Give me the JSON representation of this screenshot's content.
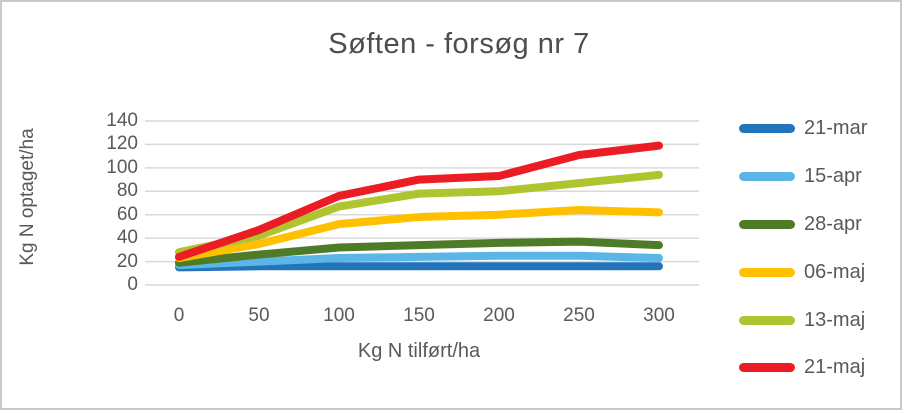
{
  "chart_data": {
    "type": "line",
    "title": "Søften - forsøg nr 7",
    "xlabel": "Kg N tilført/ha",
    "ylabel": "Kg N optaget/ha",
    "categories": [
      0,
      50,
      100,
      150,
      200,
      250,
      300
    ],
    "y_ticks": [
      140,
      120,
      100,
      80,
      60,
      40,
      20,
      0
    ],
    "ylim": [
      0,
      140
    ],
    "xlim": [
      0,
      300
    ],
    "grid": true,
    "legend_position": "right",
    "series": [
      {
        "name": "21-mar",
        "color": "#2275bb",
        "values": [
          15,
          16,
          16,
          16,
          16,
          16,
          16
        ]
      },
      {
        "name": "15-apr",
        "color": "#5bb5e7",
        "values": [
          17,
          20,
          23,
          24,
          25,
          25,
          23
        ]
      },
      {
        "name": "28-apr",
        "color": "#4e7b28",
        "values": [
          19,
          26,
          32,
          34,
          36,
          37,
          34
        ]
      },
      {
        "name": "06-maj",
        "color": "#ffc000",
        "values": [
          23,
          35,
          52,
          58,
          60,
          64,
          62
        ]
      },
      {
        "name": "13-maj",
        "color": "#afc42f",
        "values": [
          28,
          42,
          67,
          78,
          80,
          87,
          94
        ]
      },
      {
        "name": "21-maj",
        "color": "#ec1c24",
        "values": [
          24,
          47,
          76,
          90,
          93,
          111,
          119
        ]
      }
    ]
  },
  "colors": {
    "gridline": "#d9d9d9",
    "axis_text": "#595959",
    "title_text": "#4d4d4d",
    "frame_border": "#c9c9c9"
  }
}
